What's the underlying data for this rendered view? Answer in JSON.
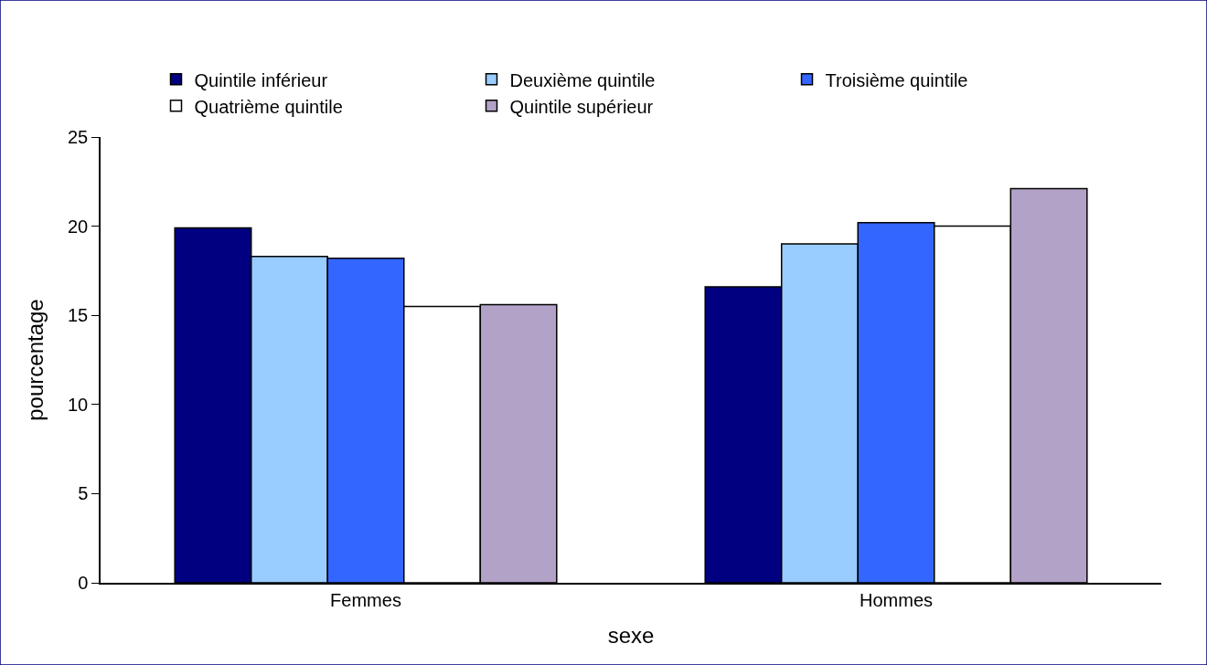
{
  "chart_data": {
    "type": "bar",
    "xlabel": "sexe",
    "ylabel": "pourcentage",
    "categories": [
      "Femmes",
      "Hommes"
    ],
    "series": [
      {
        "name": "Quintile inférieur",
        "color": "#000080",
        "values": [
          19.9,
          16.6
        ]
      },
      {
        "name": "Deuxième quintile",
        "color": "#99ccff",
        "values": [
          18.3,
          19.0
        ]
      },
      {
        "name": "Troisième quintile",
        "color": "#3366ff",
        "values": [
          18.2,
          20.2
        ]
      },
      {
        "name": "Quatrième quintile",
        "color": "#ffffff",
        "values": [
          15.5,
          20.0
        ]
      },
      {
        "name": "Quintile supérieur",
        "color": "#b3a2c7",
        "values": [
          15.6,
          22.1
        ]
      }
    ],
    "ylim": [
      0,
      25
    ],
    "yticks": [
      0,
      5,
      10,
      15,
      20,
      25
    ],
    "grid": false,
    "legend": "top"
  }
}
